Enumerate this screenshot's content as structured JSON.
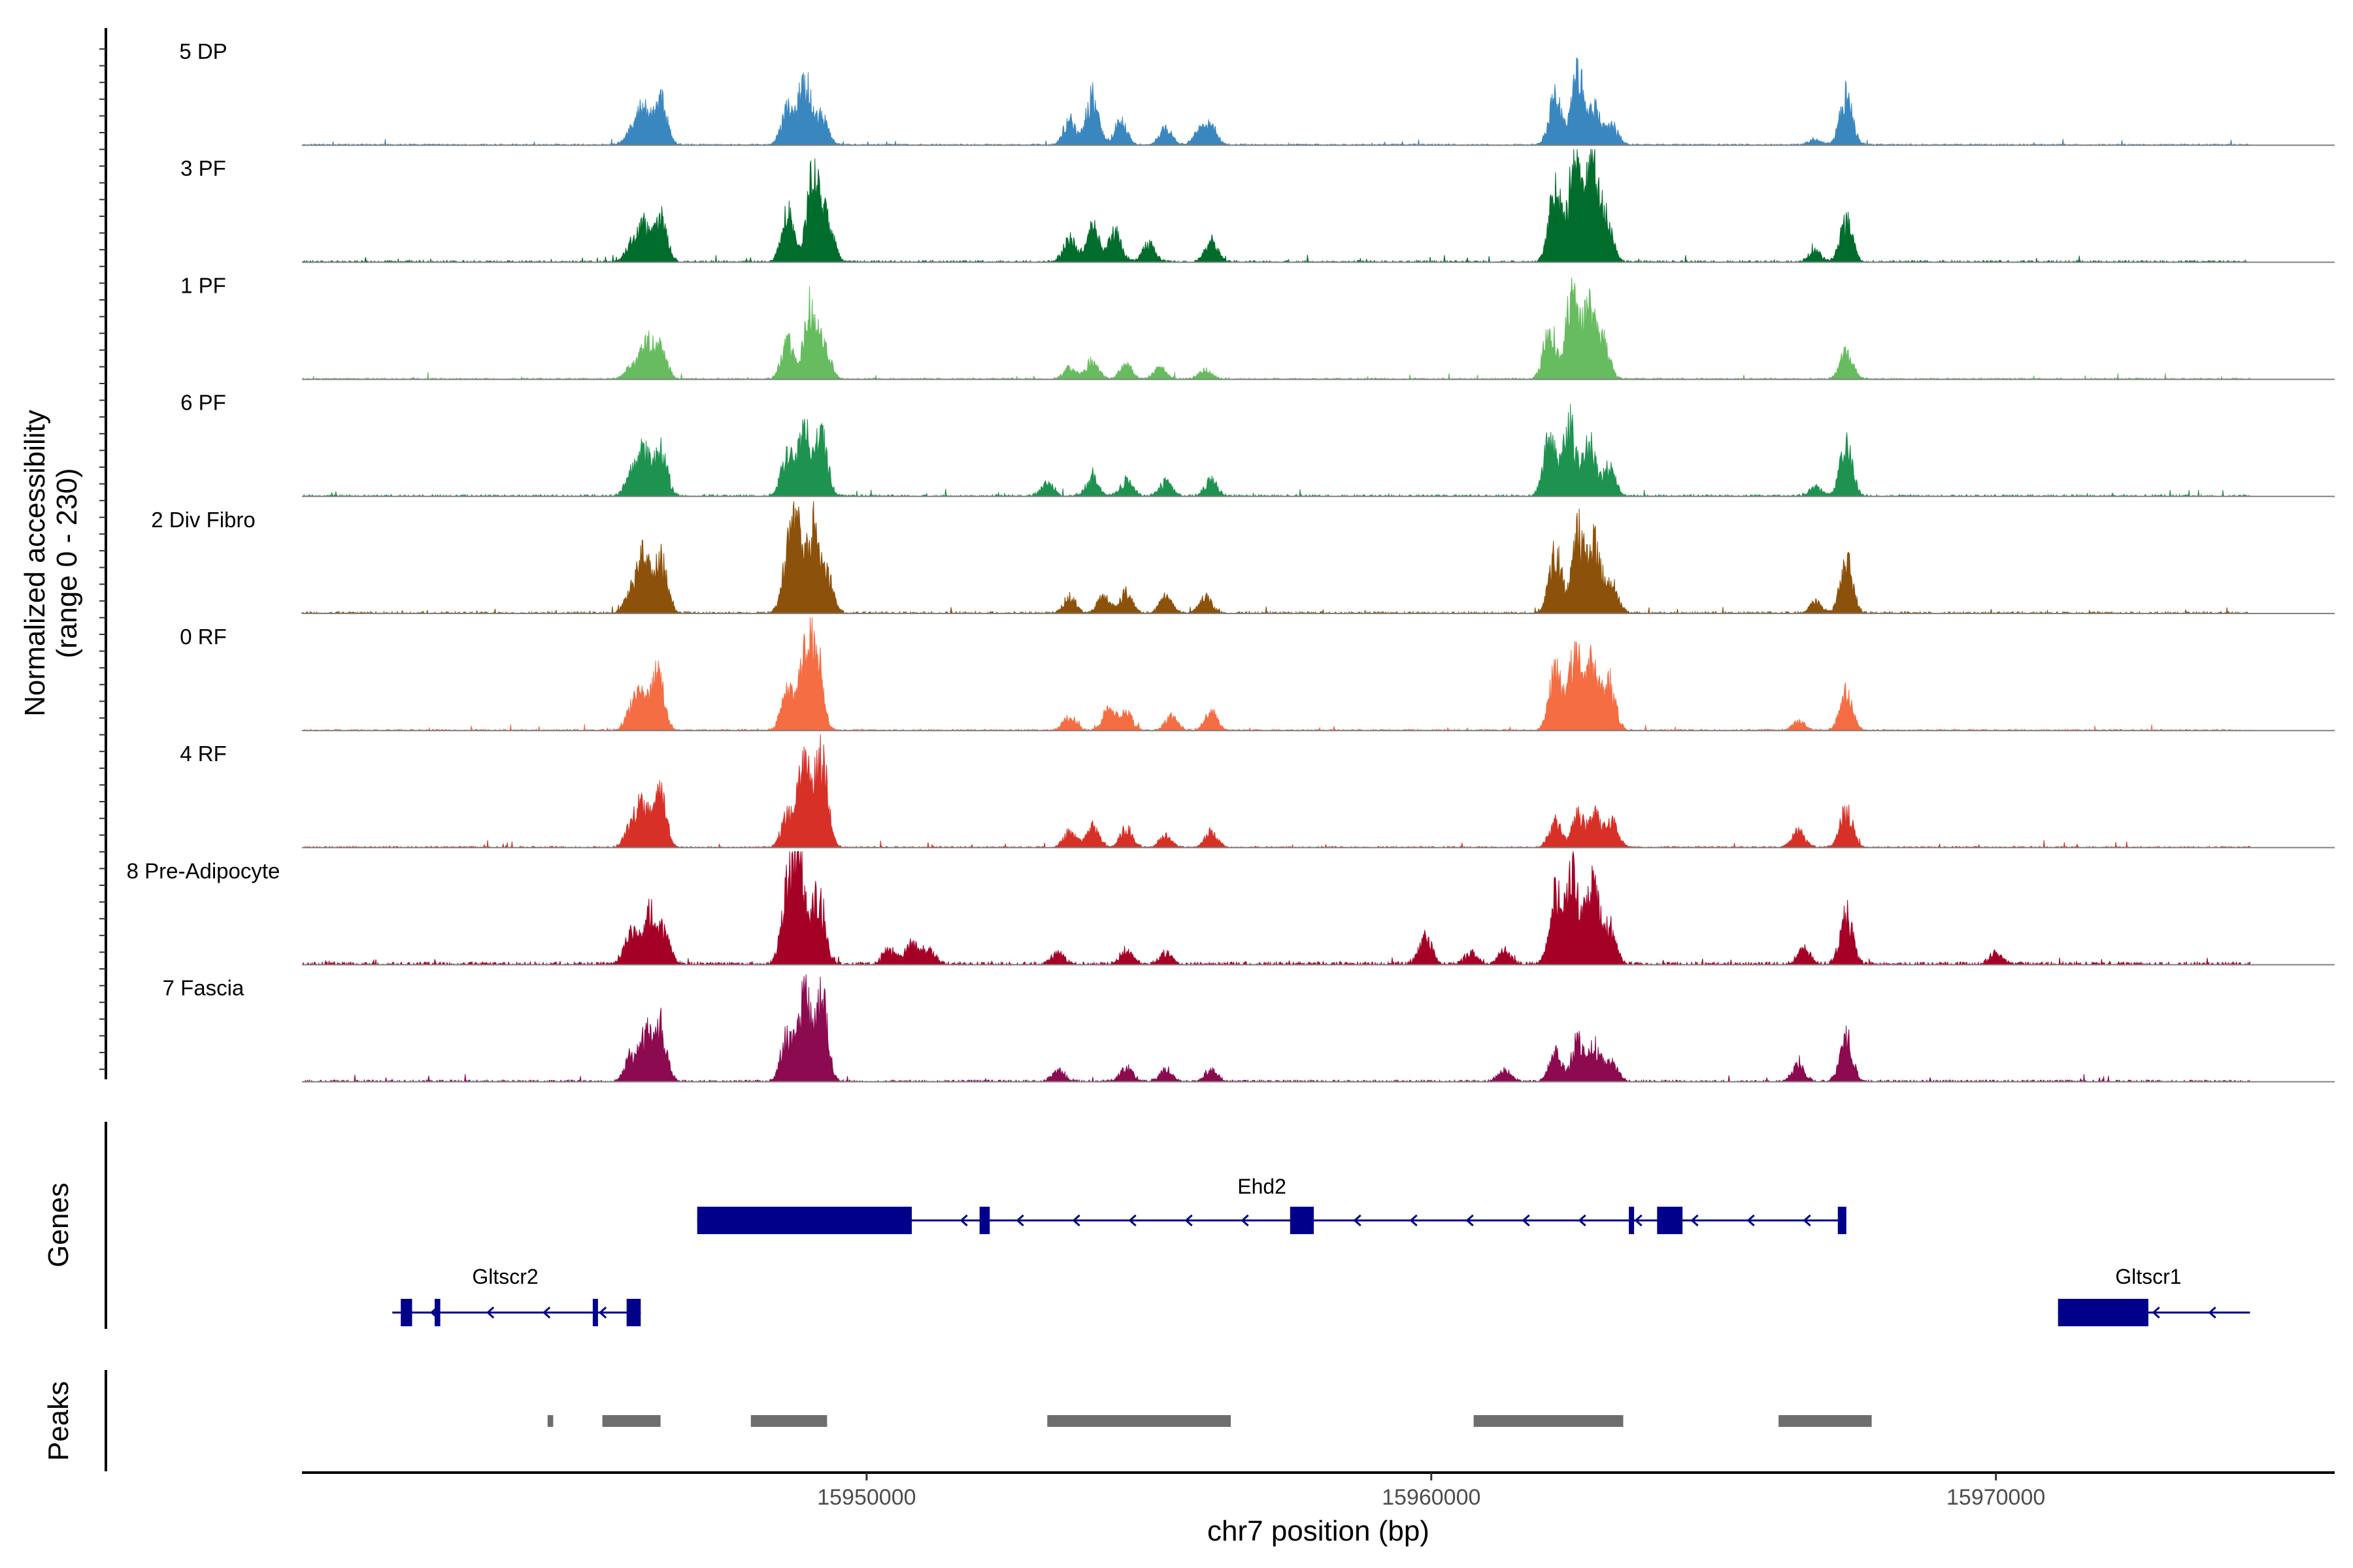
{
  "chart_data": {
    "type": "area",
    "title": "",
    "chromosome": "chr7",
    "xlabel": "chr7 position (bp)",
    "ylabel_line1": "Normalized accessibility",
    "ylabel_line2": "(range 0 - 230)",
    "yrange": [
      0,
      230
    ],
    "xlim": [
      15940000,
      15976000
    ],
    "xticks": [
      15950000,
      15960000,
      15970000
    ],
    "xtick_labels": [
      "15950000",
      "15960000",
      "15970000"
    ],
    "track_start": 15940000,
    "track_end": 15974500,
    "tracks": [
      {
        "name": "5 DP",
        "color": "#3a87c0",
        "noise": 3,
        "seed": 11,
        "peaks": [
          [
            15945830,
            0.12
          ],
          [
            15946050,
            0.31
          ],
          [
            15946350,
            0.38
          ],
          [
            15948600,
            0.3
          ],
          [
            15948900,
            0.58
          ],
          [
            15949200,
            0.24
          ],
          [
            15953600,
            0.22
          ],
          [
            15954000,
            0.42
          ],
          [
            15954500,
            0.2
          ],
          [
            15955300,
            0.15
          ],
          [
            15955900,
            0.12
          ],
          [
            15956100,
            0.15
          ],
          [
            15962200,
            0.44
          ],
          [
            15962600,
            0.6
          ],
          [
            15962900,
            0.3
          ],
          [
            15963200,
            0.16
          ],
          [
            15966800,
            0.05
          ],
          [
            15967350,
            0.45
          ]
        ]
      },
      {
        "name": "3 PF",
        "color": "#006d2c",
        "noise": 4,
        "seed": 23,
        "peaks": [
          [
            15945830,
            0.14
          ],
          [
            15946050,
            0.31
          ],
          [
            15946350,
            0.4
          ],
          [
            15948600,
            0.42
          ],
          [
            15949050,
            0.8
          ],
          [
            15949300,
            0.38
          ],
          [
            15953600,
            0.2
          ],
          [
            15954000,
            0.3
          ],
          [
            15954400,
            0.28
          ],
          [
            15955000,
            0.16
          ],
          [
            15956100,
            0.18
          ],
          [
            15962200,
            0.62
          ],
          [
            15962550,
            0.9
          ],
          [
            15962850,
            0.8
          ],
          [
            15963100,
            0.35
          ],
          [
            15966800,
            0.1
          ],
          [
            15967350,
            0.36
          ]
        ]
      },
      {
        "name": "1 PF",
        "color": "#66bc5f",
        "noise": 3,
        "seed": 37,
        "peaks": [
          [
            15945830,
            0.1
          ],
          [
            15946100,
            0.3
          ],
          [
            15946350,
            0.26
          ],
          [
            15948600,
            0.32
          ],
          [
            15949000,
            0.61
          ],
          [
            15949250,
            0.28
          ],
          [
            15953600,
            0.1
          ],
          [
            15954000,
            0.16
          ],
          [
            15954600,
            0.12
          ],
          [
            15955200,
            0.1
          ],
          [
            15956000,
            0.08
          ],
          [
            15962100,
            0.44
          ],
          [
            15962500,
            0.74
          ],
          [
            15962800,
            0.58
          ],
          [
            15963050,
            0.3
          ],
          [
            15967350,
            0.23
          ]
        ]
      },
      {
        "name": "6 PF",
        "color": "#1e9350",
        "noise": 4,
        "seed": 41,
        "peaks": [
          [
            15945830,
            0.18
          ],
          [
            15946050,
            0.38
          ],
          [
            15946350,
            0.42
          ],
          [
            15948600,
            0.36
          ],
          [
            15948900,
            0.55
          ],
          [
            15949200,
            0.5
          ],
          [
            15953200,
            0.12
          ],
          [
            15954000,
            0.16
          ],
          [
            15954600,
            0.13
          ],
          [
            15955300,
            0.12
          ],
          [
            15956100,
            0.14
          ],
          [
            15962100,
            0.5
          ],
          [
            15962450,
            0.62
          ],
          [
            15962800,
            0.45
          ],
          [
            15963150,
            0.25
          ],
          [
            15966800,
            0.08
          ],
          [
            15967350,
            0.44
          ]
        ]
      },
      {
        "name": "2 Div Fibro",
        "color": "#8c510a",
        "noise": 4,
        "seed": 53,
        "peaks": [
          [
            15945830,
            0.18
          ],
          [
            15946050,
            0.52
          ],
          [
            15946350,
            0.5
          ],
          [
            15948600,
            0.36
          ],
          [
            15948750,
            0.72
          ],
          [
            15949050,
            0.68
          ],
          [
            15949300,
            0.32
          ],
          [
            15953600,
            0.14
          ],
          [
            15954200,
            0.14
          ],
          [
            15954600,
            0.18
          ],
          [
            15955300,
            0.14
          ],
          [
            15956000,
            0.14
          ],
          [
            15962200,
            0.52
          ],
          [
            15962600,
            0.7
          ],
          [
            15962900,
            0.58
          ],
          [
            15963200,
            0.25
          ],
          [
            15966800,
            0.1
          ],
          [
            15967350,
            0.46
          ]
        ]
      },
      {
        "name": "0 RF",
        "color": "#f46d43",
        "noise": 3,
        "seed": 67,
        "peaks": [
          [
            15945830,
            0.15
          ],
          [
            15946000,
            0.28
          ],
          [
            15946300,
            0.48
          ],
          [
            15948600,
            0.34
          ],
          [
            15948900,
            0.58
          ],
          [
            15949100,
            0.68
          ],
          [
            15953600,
            0.12
          ],
          [
            15954300,
            0.2
          ],
          [
            15954600,
            0.15
          ],
          [
            15955400,
            0.12
          ],
          [
            15956100,
            0.16
          ],
          [
            15962200,
            0.52
          ],
          [
            15962550,
            0.68
          ],
          [
            15962850,
            0.56
          ],
          [
            15963150,
            0.42
          ],
          [
            15966500,
            0.08
          ],
          [
            15967350,
            0.32
          ]
        ]
      },
      {
        "name": "4 RF",
        "color": "#d73027",
        "noise": 3,
        "seed": 79,
        "peaks": [
          [
            15945830,
            0.2
          ],
          [
            15946050,
            0.36
          ],
          [
            15946350,
            0.45
          ],
          [
            15948600,
            0.28
          ],
          [
            15948900,
            0.76
          ],
          [
            15949200,
            0.76
          ],
          [
            15953600,
            0.14
          ],
          [
            15954000,
            0.18
          ],
          [
            15954600,
            0.16
          ],
          [
            15955300,
            0.1
          ],
          [
            15956100,
            0.14
          ],
          [
            15962200,
            0.22
          ],
          [
            15962600,
            0.27
          ],
          [
            15962900,
            0.28
          ],
          [
            15963200,
            0.22
          ],
          [
            15966500,
            0.14
          ],
          [
            15967350,
            0.33
          ]
        ]
      },
      {
        "name": "8 Pre-Adipocyte",
        "color": "#a50026",
        "noise": 6,
        "seed": 97,
        "peaks": [
          [
            15945830,
            0.28
          ],
          [
            15946150,
            0.45
          ],
          [
            15946400,
            0.28
          ],
          [
            15948600,
            0.6
          ],
          [
            15948800,
            0.9
          ],
          [
            15949150,
            0.62
          ],
          [
            15950400,
            0.14
          ],
          [
            15950800,
            0.18
          ],
          [
            15951100,
            0.12
          ],
          [
            15953400,
            0.1
          ],
          [
            15954600,
            0.12
          ],
          [
            15955300,
            0.1
          ],
          [
            15959900,
            0.25
          ],
          [
            15960700,
            0.1
          ],
          [
            15961300,
            0.12
          ],
          [
            15962200,
            0.6
          ],
          [
            15962500,
            0.88
          ],
          [
            15962850,
            0.76
          ],
          [
            15963150,
            0.32
          ],
          [
            15966600,
            0.14
          ],
          [
            15967350,
            0.45
          ],
          [
            15970000,
            0.1
          ]
        ]
      },
      {
        "name": "7 Fascia",
        "color": "#8b0a50",
        "noise": 4,
        "seed": 103,
        "peaks": [
          [
            15945830,
            0.2
          ],
          [
            15946100,
            0.42
          ],
          [
            15946350,
            0.44
          ],
          [
            15948600,
            0.42
          ],
          [
            15948900,
            0.72
          ],
          [
            15949200,
            0.76
          ],
          [
            15953400,
            0.1
          ],
          [
            15954600,
            0.12
          ],
          [
            15955300,
            0.1
          ],
          [
            15956100,
            0.1
          ],
          [
            15961300,
            0.1
          ],
          [
            15962200,
            0.24
          ],
          [
            15962600,
            0.34
          ],
          [
            15962900,
            0.3
          ],
          [
            15963200,
            0.16
          ],
          [
            15966500,
            0.14
          ],
          [
            15967350,
            0.38
          ]
        ]
      }
    ],
    "genes_label": "Genes",
    "genes": [
      {
        "name": "Ehd2",
        "strand": "-",
        "row": 0,
        "start": 15947000,
        "end": 15967350,
        "label_pos": 15957000,
        "exons": [
          [
            15947000,
            15950800
          ],
          [
            15952000,
            15952180
          ],
          [
            15957500,
            15957920
          ],
          [
            15963500,
            15963580
          ],
          [
            15964000,
            15964450
          ],
          [
            15967200,
            15967350
          ]
        ]
      },
      {
        "name": "Gltscr2",
        "strand": "-",
        "row": 1,
        "start": 15941600,
        "end": 15946000,
        "label_pos": 15943600,
        "exons": [
          [
            15941750,
            15941950
          ],
          [
            15942350,
            15942450
          ],
          [
            15945150,
            15945200
          ],
          [
            15945750,
            15946000
          ]
        ]
      },
      {
        "name": "Gltscr1",
        "strand": "-",
        "row": 1,
        "start": 15971100,
        "end": 15974500,
        "label_pos": 15972700,
        "exons": [
          [
            15971100,
            15972700
          ]
        ]
      }
    ],
    "peaks_label": "Peaks",
    "peak_regions": [
      [
        15944350,
        15944450
      ],
      [
        15945320,
        15946350
      ],
      [
        15947950,
        15949300
      ],
      [
        15953200,
        15956450
      ],
      [
        15960750,
        15963400
      ],
      [
        15966150,
        15967800
      ]
    ]
  }
}
